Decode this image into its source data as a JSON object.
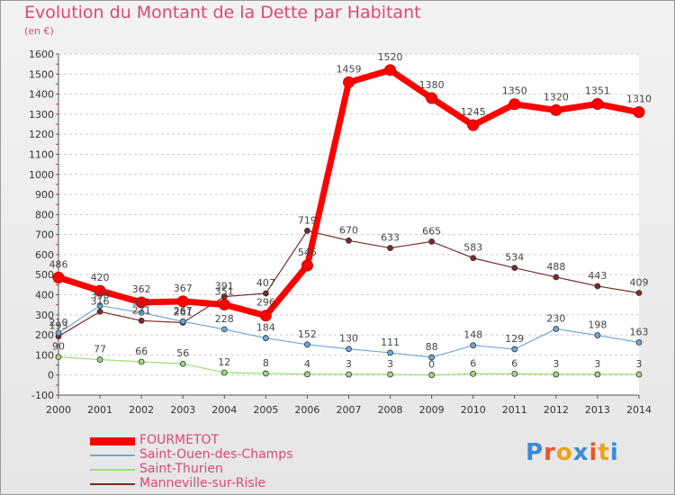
{
  "chart_data": {
    "type": "line",
    "title": "Evolution du Montant de la Dette par Habitant",
    "subtitle": "(en €)",
    "x": [
      "2000",
      "2001",
      "2002",
      "2003",
      "2004",
      "2005",
      "2006",
      "2007",
      "2008",
      "2009",
      "2010",
      "2011",
      "2012",
      "2013",
      "2014"
    ],
    "ylim": [
      -100,
      1600
    ],
    "yticks": [
      -100,
      0,
      100,
      200,
      300,
      400,
      500,
      600,
      700,
      800,
      900,
      1000,
      1100,
      1200,
      1300,
      1400,
      1500,
      1600
    ],
    "grid": "dashed horizontal",
    "legend_position": "bottom-left",
    "series": [
      {
        "name": "FOURMETOT",
        "color": "#ff0000",
        "values": [
          486,
          420,
          362,
          367,
          351,
          296,
          546,
          1459,
          1520,
          1380,
          1245,
          1350,
          1320,
          1351,
          1310
        ]
      },
      {
        "name": "Saint-Ouen-des-Champs",
        "color": "#6fa8d8",
        "values": [
          210,
          346,
          311,
          267,
          228,
          184,
          152,
          130,
          111,
          88,
          148,
          129,
          230,
          198,
          163
        ]
      },
      {
        "name": "Saint-Thurien",
        "color": "#99dd77",
        "values": [
          90,
          77,
          66,
          56,
          12,
          8,
          4,
          3,
          3,
          0,
          6,
          6,
          3,
          3,
          3
        ]
      },
      {
        "name": "Manneville-sur-Risle",
        "color": "#7a2a2a",
        "values": [
          193,
          316,
          271,
          261,
          391,
          407,
          719,
          670,
          633,
          665,
          583,
          534,
          488,
          443,
          409
        ]
      }
    ]
  },
  "logo": {
    "letters": [
      "P",
      "r",
      "o",
      "x",
      "i",
      "t",
      "i"
    ],
    "colors": [
      "#3a8ad8",
      "#e6562e",
      "#f0a020",
      "#3a8ad8",
      "#e6562e",
      "#f0a020",
      "#3a8ad8"
    ]
  }
}
